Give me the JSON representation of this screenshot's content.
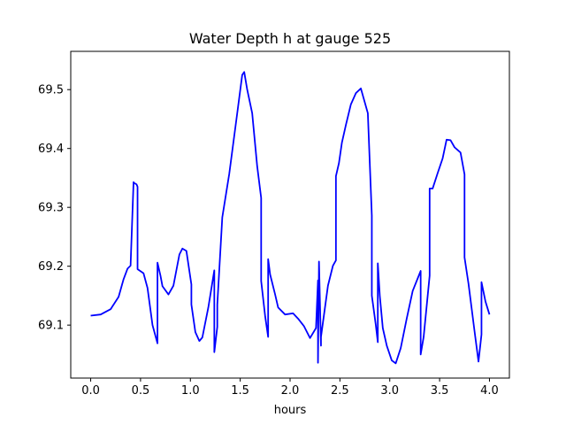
{
  "chart_data": {
    "type": "line",
    "title": "Water Depth h at gauge 525",
    "xlabel": "hours",
    "ylabel": "",
    "xlim": [
      -0.2,
      4.2
    ],
    "ylim": [
      69.01,
      69.565
    ],
    "xticks": [
      0.0,
      0.5,
      1.0,
      1.5,
      2.0,
      2.5,
      3.0,
      3.5,
      4.0
    ],
    "xtick_labels": [
      "0.0",
      "0.5",
      "1.0",
      "1.5",
      "2.0",
      "2.5",
      "3.0",
      "3.5",
      "4.0"
    ],
    "yticks": [
      69.1,
      69.2,
      69.3,
      69.4,
      69.5
    ],
    "ytick_labels": [
      "69.1",
      "69.2",
      "69.3",
      "69.4",
      "69.5"
    ],
    "grid": false,
    "legend": "none",
    "series": [
      {
        "color": "#0000ff",
        "x": [
          0.0,
          0.1,
          0.2,
          0.28,
          0.33,
          0.37,
          0.4,
          0.43,
          0.43,
          0.46,
          0.47,
          0.47,
          0.53,
          0.57,
          0.62,
          0.67,
          0.67,
          0.7,
          0.72,
          0.78,
          0.83,
          0.89,
          0.92,
          0.96,
          1.01,
          1.01,
          1.05,
          1.09,
          1.12,
          1.18,
          1.24,
          1.24,
          1.27,
          1.27,
          1.32,
          1.39,
          1.47,
          1.52,
          1.54,
          1.55,
          1.57,
          1.62,
          1.67,
          1.71,
          1.71,
          1.75,
          1.78,
          1.78,
          1.8,
          1.85,
          1.88,
          1.95,
          2.03,
          2.08,
          2.14,
          2.2,
          2.26,
          2.28,
          2.28,
          2.29,
          2.31,
          2.31,
          2.38,
          2.43,
          2.46,
          2.46,
          2.49,
          2.52,
          2.56,
          2.61,
          2.66,
          2.71,
          2.78,
          2.82,
          2.82,
          2.86,
          2.88,
          2.88,
          2.9,
          2.93,
          2.97,
          3.02,
          3.06,
          3.11,
          3.17,
          3.23,
          3.31,
          3.31,
          3.34,
          3.4,
          3.4,
          3.43,
          3.48,
          3.53,
          3.57,
          3.61,
          3.65,
          3.71,
          3.75,
          3.75,
          3.79,
          3.85,
          3.89,
          3.92,
          3.92,
          3.96,
          4.0
        ],
        "y": [
          69.116,
          69.118,
          69.127,
          69.148,
          69.178,
          69.196,
          69.201,
          69.343,
          69.342,
          69.339,
          69.335,
          69.195,
          69.188,
          69.163,
          69.1,
          69.069,
          69.206,
          69.184,
          69.166,
          69.152,
          69.167,
          69.22,
          69.23,
          69.226,
          69.169,
          69.135,
          69.088,
          69.073,
          69.079,
          69.13,
          69.193,
          69.054,
          69.097,
          69.135,
          69.283,
          69.357,
          69.46,
          69.525,
          69.53,
          69.52,
          69.5,
          69.46,
          69.37,
          69.316,
          69.175,
          69.115,
          69.08,
          69.212,
          69.186,
          69.152,
          69.13,
          69.118,
          69.12,
          69.111,
          69.098,
          69.078,
          69.095,
          69.176,
          69.036,
          69.208,
          69.065,
          69.08,
          69.167,
          69.201,
          69.21,
          69.353,
          69.375,
          69.41,
          69.44,
          69.475,
          69.494,
          69.502,
          69.46,
          69.286,
          69.15,
          69.1,
          69.071,
          69.205,
          69.15,
          69.095,
          69.065,
          69.04,
          69.035,
          69.061,
          69.111,
          69.158,
          69.192,
          69.05,
          69.08,
          69.184,
          69.332,
          69.332,
          69.358,
          69.383,
          69.415,
          69.414,
          69.402,
          69.393,
          69.356,
          69.215,
          69.17,
          69.09,
          69.038,
          69.084,
          69.173,
          69.14,
          69.118
        ]
      }
    ]
  }
}
